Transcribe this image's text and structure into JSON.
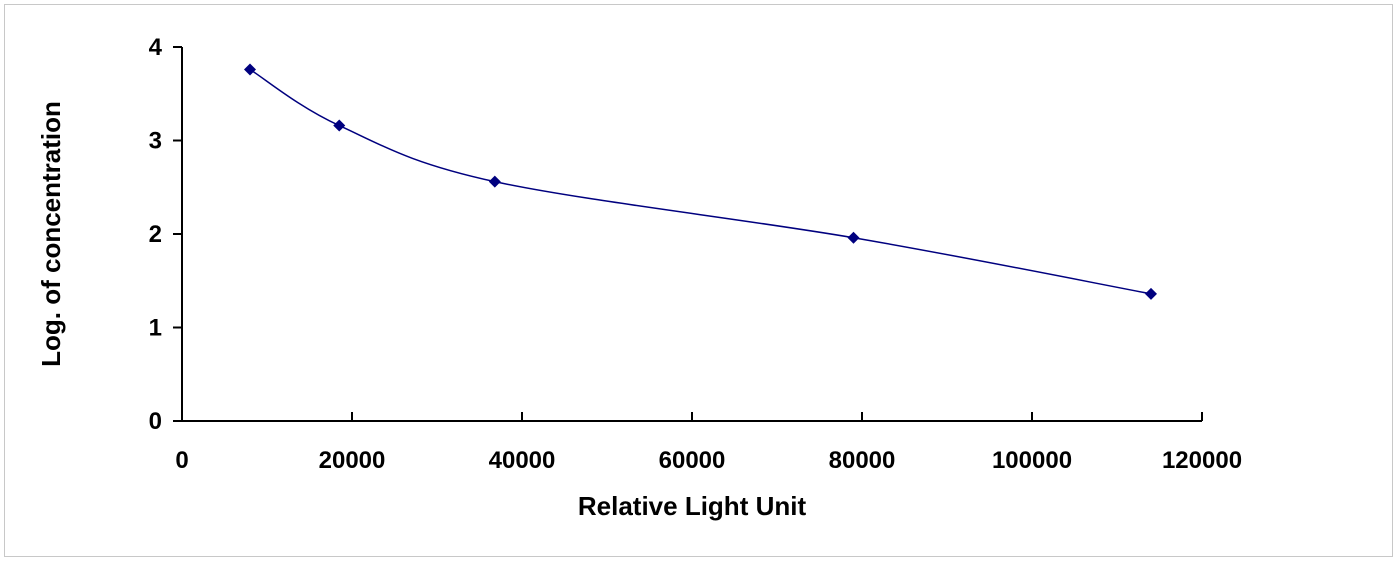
{
  "chart_data": {
    "type": "scatter",
    "title": "",
    "xlabel": "Relative Light Unit",
    "ylabel": "Log. of concentration",
    "xlim": [
      0,
      120000
    ],
    "ylim": [
      0,
      4
    ],
    "x_ticks": [
      "0",
      "20000",
      "40000",
      "60000",
      "80000",
      "100000",
      "120000"
    ],
    "y_ticks": [
      "0",
      "1",
      "2",
      "3",
      "4"
    ],
    "grid": false,
    "legend": "none",
    "line_color": "#00007f",
    "marker_color": "#00007f",
    "marker": "diamond",
    "smooth_line": true,
    "series": [
      {
        "x": [
          8000,
          18500,
          36800,
          79000,
          114000
        ],
        "y": [
          3.76,
          3.16,
          2.56,
          1.96,
          1.36
        ]
      }
    ]
  }
}
